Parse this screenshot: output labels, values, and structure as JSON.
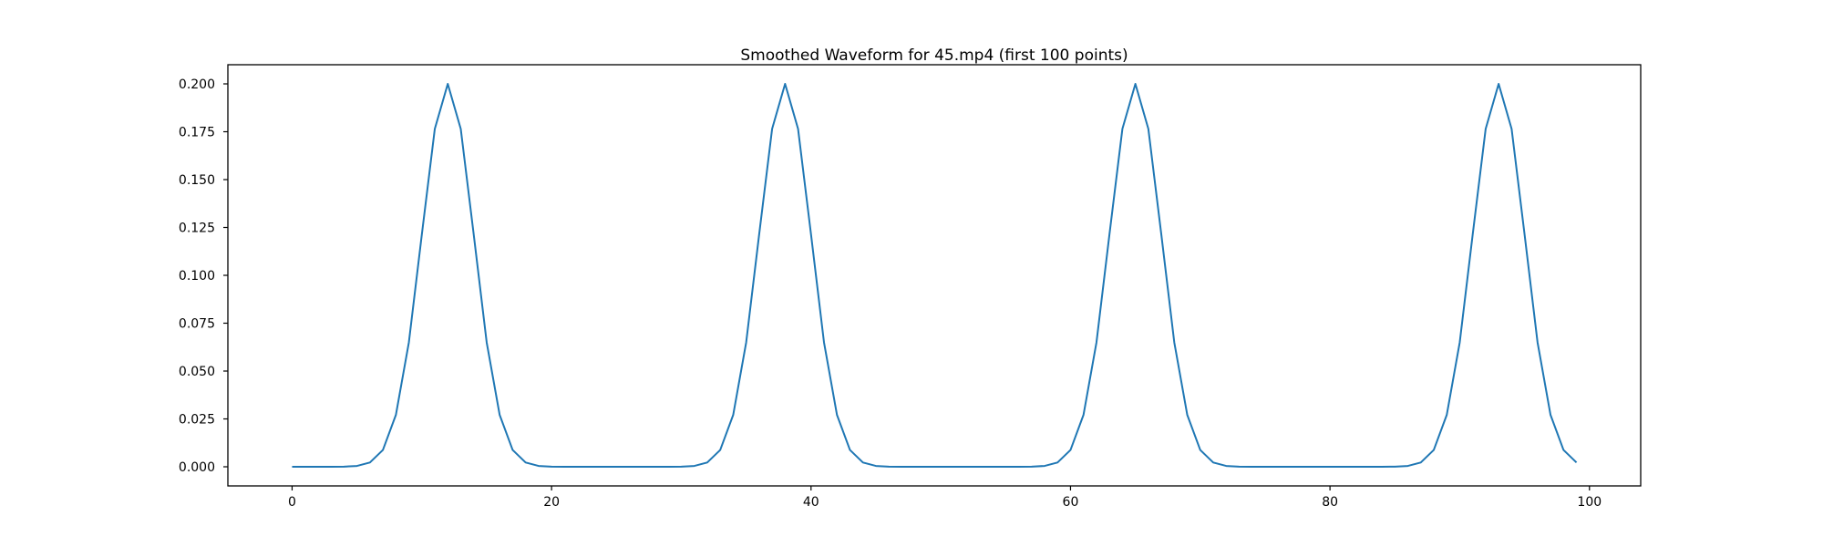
{
  "figure": {
    "background": "#ffffff",
    "axes_color": "#000000",
    "text_color": "#000000"
  },
  "chart_data": {
    "type": "line",
    "title": "Smoothed Waveform for 45.mp4 (first 100 points)",
    "xlabel": "",
    "ylabel": "",
    "grid": false,
    "legend": "none",
    "line_color": "#1f77b4",
    "line_width": 2,
    "xlim": [
      -4.95,
      103.95
    ],
    "ylim": [
      -0.01,
      0.21
    ],
    "xticks": {
      "values": [
        0,
        20,
        40,
        60,
        80,
        100
      ],
      "labels": [
        "0",
        "20",
        "40",
        "60",
        "80",
        "100"
      ]
    },
    "yticks": {
      "values": [
        0.0,
        0.025,
        0.05,
        0.075,
        0.1,
        0.125,
        0.15,
        0.175,
        0.2
      ],
      "labels": [
        "0.000",
        "0.025",
        "0.050",
        "0.075",
        "0.100",
        "0.125",
        "0.150",
        "0.175",
        "0.200"
      ]
    },
    "peaks_at_x": [
      12,
      38,
      65,
      93
    ],
    "x": [
      0,
      1,
      2,
      3,
      4,
      5,
      6,
      7,
      8,
      9,
      10,
      11,
      12,
      13,
      14,
      15,
      16,
      17,
      18,
      19,
      20,
      21,
      22,
      23,
      24,
      25,
      26,
      27,
      28,
      29,
      30,
      31,
      32,
      33,
      34,
      35,
      36,
      37,
      38,
      39,
      40,
      41,
      42,
      43,
      44,
      45,
      46,
      47,
      48,
      49,
      50,
      51,
      52,
      53,
      54,
      55,
      56,
      57,
      58,
      59,
      60,
      61,
      62,
      63,
      64,
      65,
      66,
      67,
      68,
      69,
      70,
      71,
      72,
      73,
      74,
      75,
      76,
      77,
      78,
      79,
      80,
      81,
      82,
      83,
      84,
      85,
      86,
      87,
      88,
      89,
      90,
      91,
      92,
      93,
      94,
      95,
      96,
      97,
      98,
      99
    ],
    "values": [
      0,
      0,
      1e-06,
      8e-06,
      6.7e-05,
      0.000437,
      0.002222,
      0.008787,
      0.027067,
      0.06493,
      0.121306,
      0.176501,
      0.2,
      0.176501,
      0.121306,
      0.06493,
      0.027067,
      0.008787,
      0.002222,
      0.000437,
      6.7e-05,
      8e-06,
      1e-06,
      0,
      0,
      0,
      0,
      0,
      1e-06,
      8e-06,
      6.7e-05,
      0.000437,
      0.002222,
      0.008787,
      0.027067,
      0.06493,
      0.121306,
      0.176501,
      0.2,
      0.176501,
      0.121306,
      0.06493,
      0.027067,
      0.008787,
      0.002222,
      0.000437,
      6.7e-05,
      8e-06,
      1e-06,
      0,
      0,
      0,
      0,
      0,
      0,
      1e-06,
      8e-06,
      6.7e-05,
      0.000437,
      0.002222,
      0.008787,
      0.027067,
      0.06493,
      0.121306,
      0.176501,
      0.2,
      0.176501,
      0.121306,
      0.06493,
      0.027067,
      0.008787,
      0.002222,
      0.000437,
      6.7e-05,
      8e-06,
      1e-06,
      0,
      0,
      0,
      0,
      0,
      0,
      0,
      1e-06,
      8e-06,
      6.7e-05,
      0.000437,
      0.002222,
      0.008787,
      0.027067,
      0.06493,
      0.121306,
      0.176501,
      0.2,
      0.176501,
      0.121306,
      0.06493,
      0.027067,
      0.008787,
      0.002222
    ]
  }
}
